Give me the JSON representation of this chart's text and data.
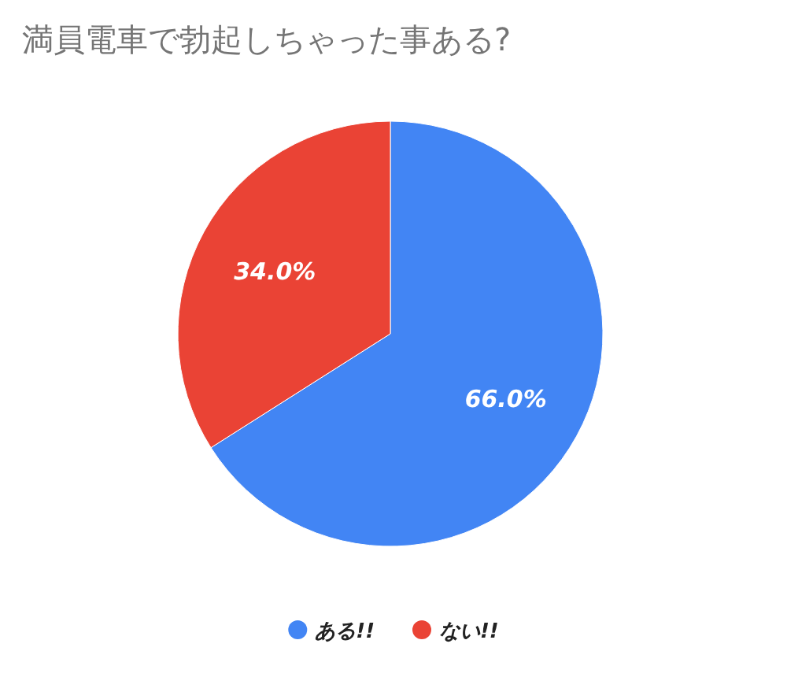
{
  "chart_data": {
    "type": "pie",
    "title": "満員電車で勃起しちゃった事ある?",
    "categories": [
      "ある!!",
      "ない!!"
    ],
    "values": [
      66,
      34
    ],
    "colors": [
      "#4285f4",
      "#ea4335"
    ],
    "value_labels": [
      "66.0%",
      "34.0%"
    ],
    "legend": "bottom"
  }
}
